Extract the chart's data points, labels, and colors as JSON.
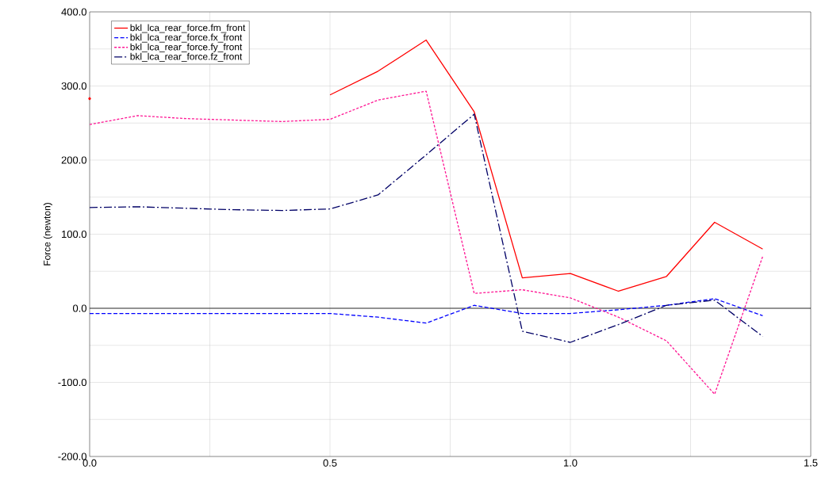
{
  "chart_data": {
    "type": "line",
    "ylabel": "Force (newton)",
    "x": [
      0,
      0.1,
      0.2,
      0.3,
      0.4,
      0.5,
      0.6,
      0.7,
      0.8,
      0.9,
      1.0,
      1.1,
      1.2,
      1.3,
      1.4
    ],
    "series": [
      {
        "name": "bkl_lca_rear_force.fm_front",
        "color": "#ff0000",
        "line_style": "solid",
        "values": [
          283,
          null,
          null,
          null,
          null,
          288,
          320,
          362,
          265,
          41,
          47,
          23,
          43,
          116,
          80
        ]
      },
      {
        "name": "bkl_lca_rear_force.fx_front",
        "color": "#0000ff",
        "line_style": "dashed",
        "values": [
          -7,
          -7,
          -7,
          -7,
          -7,
          -7,
          -12,
          -20,
          4,
          -7,
          -7,
          -2,
          4,
          13,
          -10
        ]
      },
      {
        "name": "bkl_lca_rear_force.fy_front",
        "color": "#ff1493",
        "line_style": "dotted",
        "values": [
          248,
          260,
          256,
          254,
          252,
          255,
          281,
          293,
          20,
          25,
          14,
          -12,
          -44,
          -116,
          70
        ]
      },
      {
        "name": "bkl_lca_rear_force.fz_front",
        "color": "#000066",
        "line_style": "dashdot",
        "values": [
          136,
          137,
          135,
          133,
          132,
          134,
          153,
          207,
          262,
          -31,
          -46,
          -22,
          4,
          11,
          -38
        ]
      }
    ],
    "xlim": [
      0,
      1.5
    ],
    "xticks": [
      {
        "value": 0,
        "label": "0.0"
      },
      {
        "value": 0.25,
        "label": null
      },
      {
        "value": 0.5,
        "label": "0.5"
      },
      {
        "value": 0.75,
        "label": null
      },
      {
        "value": 1.0,
        "label": "1.0"
      },
      {
        "value": 1.25,
        "label": null
      },
      {
        "value": 1.5,
        "label": "1.5"
      }
    ],
    "ylim": [
      -200,
      400
    ],
    "yticks": [
      {
        "value": -200,
        "label": "-200.0"
      },
      {
        "value": -150,
        "label": null
      },
      {
        "value": -100,
        "label": "-100.0"
      },
      {
        "value": -50,
        "label": null
      },
      {
        "value": 0,
        "label": "0.0"
      },
      {
        "value": 50,
        "label": null
      },
      {
        "value": 100,
        "label": "100.0"
      },
      {
        "value": 150,
        "label": null
      },
      {
        "value": 200,
        "label": "200.0"
      },
      {
        "value": 250,
        "label": null
      },
      {
        "value": 300,
        "label": "300.0"
      },
      {
        "value": 350,
        "label": null
      },
      {
        "value": 400,
        "label": "400.0"
      }
    ],
    "ref_lines": [
      {
        "axis": "y",
        "value": 0,
        "color": "#000000"
      }
    ],
    "grid": true,
    "legend": "top left"
  }
}
